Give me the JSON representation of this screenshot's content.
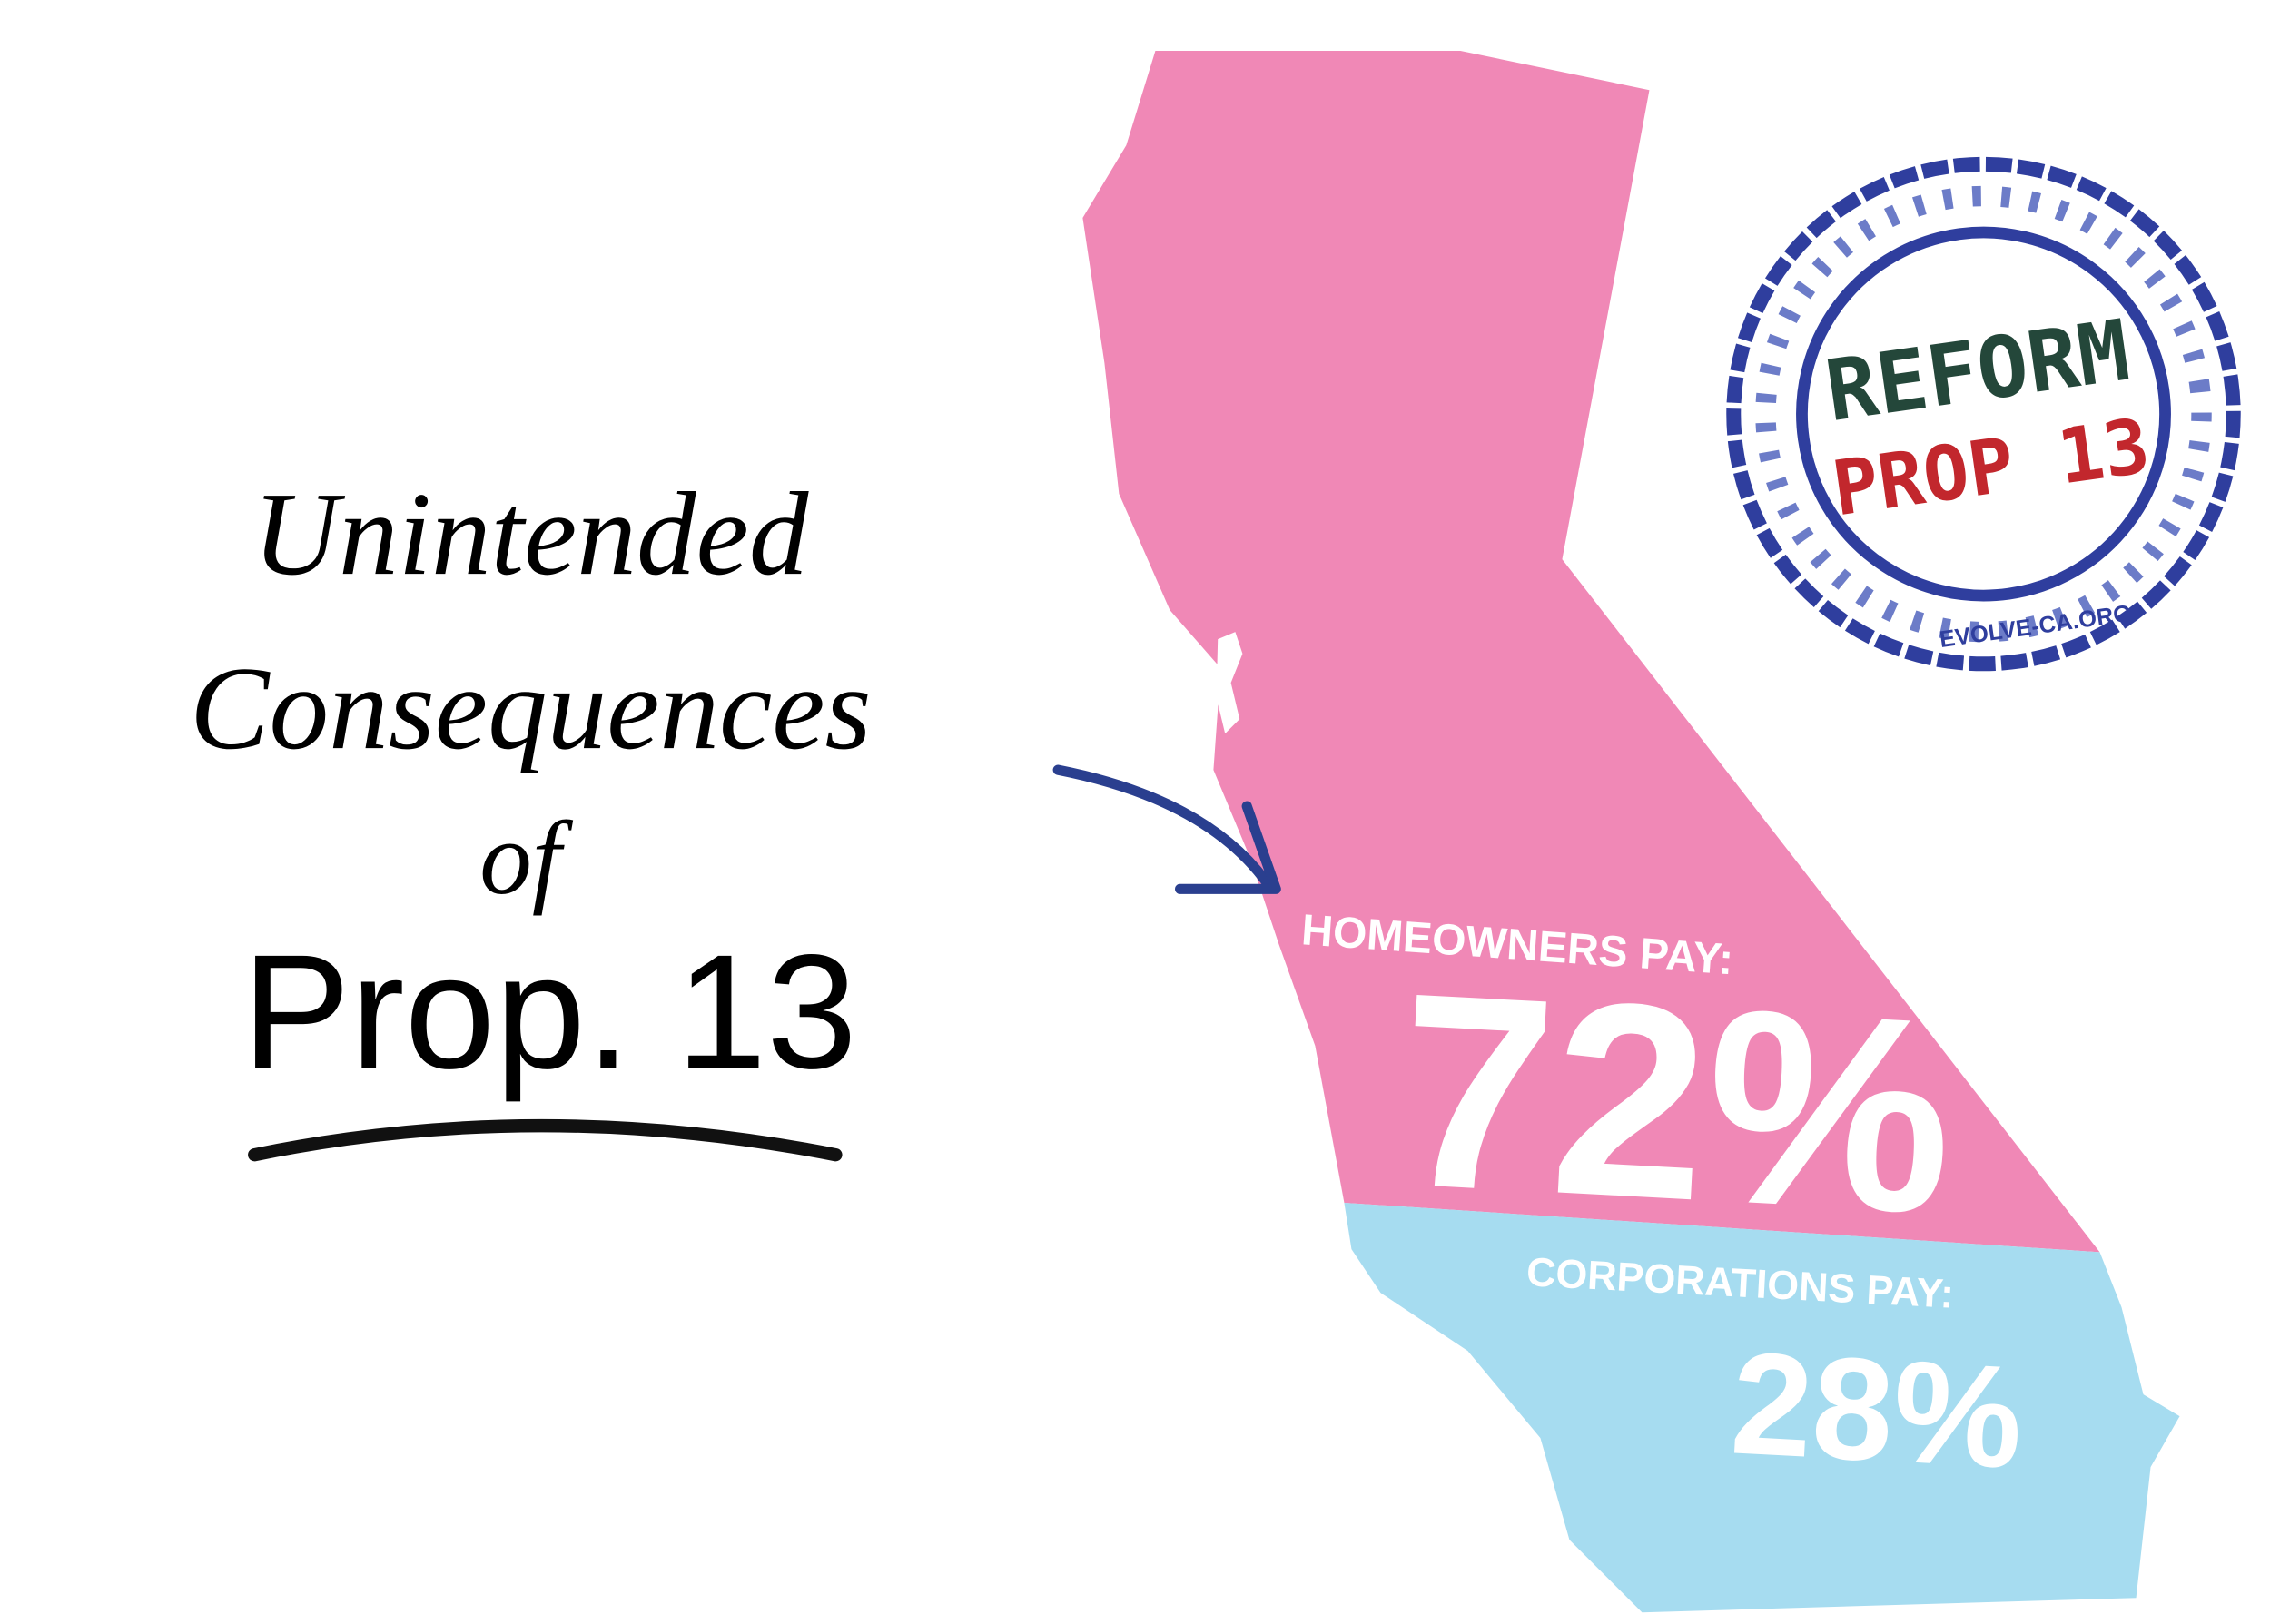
{
  "title": {
    "line1": "Unintended",
    "line2": "Consequences",
    "line3": "of",
    "line4": "Prop. 13"
  },
  "map": {
    "homeowners": {
      "label": "HOMEOWNERS PAY:",
      "share": "72%"
    },
    "corporations": {
      "label": "CORPORATIONS PAY:",
      "share": "28%"
    }
  },
  "stamp": {
    "line1": "REFORM",
    "line2": "PROP 13",
    "site": "EVOLVE-CA.ORG"
  }
}
